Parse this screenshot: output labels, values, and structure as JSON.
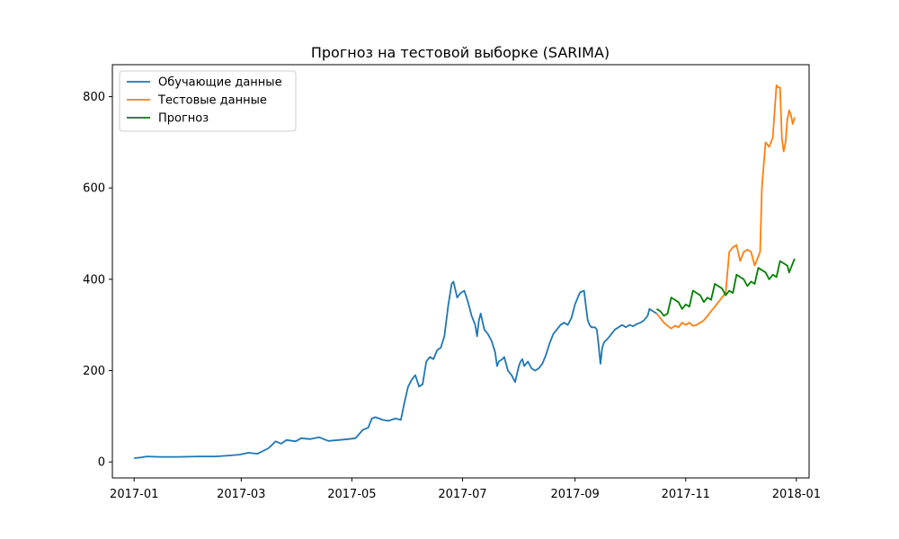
{
  "chart_data": {
    "type": "line",
    "title": "Прогноз на тестовой выборке (SARIMA)",
    "xlabel": "",
    "ylabel": "",
    "x_axis": {
      "type": "date",
      "range": [
        "2016-12-20",
        "2018-01-08"
      ],
      "ticks": [
        {
          "date": "2017-01-01",
          "label": "2017-01"
        },
        {
          "date": "2017-03-01",
          "label": "2017-03"
        },
        {
          "date": "2017-05-01",
          "label": "2017-05"
        },
        {
          "date": "2017-07-01",
          "label": "2017-07"
        },
        {
          "date": "2017-09-01",
          "label": "2017-09"
        },
        {
          "date": "2017-11-01",
          "label": "2017-11"
        },
        {
          "date": "2018-01-01",
          "label": "2018-01"
        }
      ]
    },
    "y_axis": {
      "range": [
        -35,
        870
      ],
      "ticks": [
        {
          "value": 0,
          "label": "0"
        },
        {
          "value": 200,
          "label": "200"
        },
        {
          "value": 400,
          "label": "400"
        },
        {
          "value": 600,
          "label": "600"
        },
        {
          "value": 800,
          "label": "800"
        }
      ]
    },
    "grid": false,
    "legend_position": "top-left",
    "series": [
      {
        "name": "Обучающие данные",
        "color": "#1f77b4",
        "points": [
          [
            "2017-01-01",
            8
          ],
          [
            "2017-01-05",
            10
          ],
          [
            "2017-01-08",
            12
          ],
          [
            "2017-01-15",
            11
          ],
          [
            "2017-01-25",
            11
          ],
          [
            "2017-02-05",
            12
          ],
          [
            "2017-02-15",
            12
          ],
          [
            "2017-02-22",
            14
          ],
          [
            "2017-02-28",
            16
          ],
          [
            "2017-03-05",
            20
          ],
          [
            "2017-03-10",
            18
          ],
          [
            "2017-03-16",
            30
          ],
          [
            "2017-03-20",
            45
          ],
          [
            "2017-03-23",
            40
          ],
          [
            "2017-03-26",
            48
          ],
          [
            "2017-03-31",
            45
          ],
          [
            "2017-04-03",
            52
          ],
          [
            "2017-04-08",
            50
          ],
          [
            "2017-04-13",
            54
          ],
          [
            "2017-04-18",
            46
          ],
          [
            "2017-04-24",
            48
          ],
          [
            "2017-04-29",
            50
          ],
          [
            "2017-05-03",
            52
          ],
          [
            "2017-05-07",
            70
          ],
          [
            "2017-05-10",
            75
          ],
          [
            "2017-05-12",
            95
          ],
          [
            "2017-05-14",
            98
          ],
          [
            "2017-05-18",
            92
          ],
          [
            "2017-05-21",
            90
          ],
          [
            "2017-05-25",
            95
          ],
          [
            "2017-05-28",
            92
          ],
          [
            "2017-05-30",
            130
          ],
          [
            "2017-06-01",
            165
          ],
          [
            "2017-06-03",
            180
          ],
          [
            "2017-06-05",
            190
          ],
          [
            "2017-06-07",
            165
          ],
          [
            "2017-06-09",
            170
          ],
          [
            "2017-06-11",
            220
          ],
          [
            "2017-06-13",
            230
          ],
          [
            "2017-06-15",
            225
          ],
          [
            "2017-06-17",
            245
          ],
          [
            "2017-06-19",
            250
          ],
          [
            "2017-06-21",
            275
          ],
          [
            "2017-06-23",
            340
          ],
          [
            "2017-06-25",
            390
          ],
          [
            "2017-06-26",
            395
          ],
          [
            "2017-06-28",
            360
          ],
          [
            "2017-06-30",
            370
          ],
          [
            "2017-07-02",
            375
          ],
          [
            "2017-07-04",
            350
          ],
          [
            "2017-07-06",
            320
          ],
          [
            "2017-07-08",
            300
          ],
          [
            "2017-07-09",
            275
          ],
          [
            "2017-07-10",
            310
          ],
          [
            "2017-07-11",
            325
          ],
          [
            "2017-07-13",
            290
          ],
          [
            "2017-07-15",
            280
          ],
          [
            "2017-07-17",
            265
          ],
          [
            "2017-07-19",
            240
          ],
          [
            "2017-07-20",
            210
          ],
          [
            "2017-07-21",
            220
          ],
          [
            "2017-07-23",
            225
          ],
          [
            "2017-07-24",
            230
          ],
          [
            "2017-07-26",
            200
          ],
          [
            "2017-07-28",
            190
          ],
          [
            "2017-07-30",
            175
          ],
          [
            "2017-08-01",
            210
          ],
          [
            "2017-08-02",
            220
          ],
          [
            "2017-08-03",
            225
          ],
          [
            "2017-08-04",
            210
          ],
          [
            "2017-08-06",
            220
          ],
          [
            "2017-08-08",
            205
          ],
          [
            "2017-08-10",
            200
          ],
          [
            "2017-08-12",
            205
          ],
          [
            "2017-08-14",
            215
          ],
          [
            "2017-08-16",
            235
          ],
          [
            "2017-08-18",
            260
          ],
          [
            "2017-08-20",
            280
          ],
          [
            "2017-08-22",
            290
          ],
          [
            "2017-08-24",
            300
          ],
          [
            "2017-08-26",
            305
          ],
          [
            "2017-08-28",
            300
          ],
          [
            "2017-08-30",
            315
          ],
          [
            "2017-09-01",
            345
          ],
          [
            "2017-09-03",
            365
          ],
          [
            "2017-09-04",
            372
          ],
          [
            "2017-09-06",
            375
          ],
          [
            "2017-09-07",
            340
          ],
          [
            "2017-09-08",
            310
          ],
          [
            "2017-09-09",
            300
          ],
          [
            "2017-09-10",
            295
          ],
          [
            "2017-09-12",
            295
          ],
          [
            "2017-09-13",
            290
          ],
          [
            "2017-09-14",
            255
          ],
          [
            "2017-09-15",
            215
          ],
          [
            "2017-09-16",
            250
          ],
          [
            "2017-09-17",
            262
          ],
          [
            "2017-09-19",
            270
          ],
          [
            "2017-09-21",
            280
          ],
          [
            "2017-09-23",
            290
          ],
          [
            "2017-09-25",
            295
          ],
          [
            "2017-09-27",
            300
          ],
          [
            "2017-09-29",
            295
          ],
          [
            "2017-10-01",
            300
          ],
          [
            "2017-10-03",
            297
          ],
          [
            "2017-10-05",
            302
          ],
          [
            "2017-10-07",
            305
          ],
          [
            "2017-10-09",
            310
          ],
          [
            "2017-10-11",
            320
          ],
          [
            "2017-10-12",
            335
          ],
          [
            "2017-10-14",
            330
          ],
          [
            "2017-10-16",
            325
          ]
        ]
      },
      {
        "name": "Тестовые данные",
        "color": "#ff7f0e",
        "points": [
          [
            "2017-10-16",
            325
          ],
          [
            "2017-10-18",
            315
          ],
          [
            "2017-10-20",
            305
          ],
          [
            "2017-10-22",
            298
          ],
          [
            "2017-10-24",
            292
          ],
          [
            "2017-10-26",
            298
          ],
          [
            "2017-10-28",
            295
          ],
          [
            "2017-10-30",
            305
          ],
          [
            "2017-11-01",
            300
          ],
          [
            "2017-11-03",
            305
          ],
          [
            "2017-11-05",
            298
          ],
          [
            "2017-11-07",
            300
          ],
          [
            "2017-11-09",
            305
          ],
          [
            "2017-11-11",
            310
          ],
          [
            "2017-11-13",
            320
          ],
          [
            "2017-11-15",
            330
          ],
          [
            "2017-11-17",
            340
          ],
          [
            "2017-11-19",
            350
          ],
          [
            "2017-11-21",
            360
          ],
          [
            "2017-11-23",
            370
          ],
          [
            "2017-11-25",
            460
          ],
          [
            "2017-11-27",
            470
          ],
          [
            "2017-11-29",
            475
          ],
          [
            "2017-12-01",
            440
          ],
          [
            "2017-12-03",
            460
          ],
          [
            "2017-12-05",
            465
          ],
          [
            "2017-12-07",
            460
          ],
          [
            "2017-12-09",
            430
          ],
          [
            "2017-12-11",
            450
          ],
          [
            "2017-12-12",
            460
          ],
          [
            "2017-12-13",
            600
          ],
          [
            "2017-12-14",
            650
          ],
          [
            "2017-12-15",
            700
          ],
          [
            "2017-12-17",
            690
          ],
          [
            "2017-12-19",
            710
          ],
          [
            "2017-12-20",
            770
          ],
          [
            "2017-12-21",
            825
          ],
          [
            "2017-12-22",
            820
          ],
          [
            "2017-12-23",
            820
          ],
          [
            "2017-12-24",
            710
          ],
          [
            "2017-12-25",
            680
          ],
          [
            "2017-12-26",
            700
          ],
          [
            "2017-12-27",
            750
          ],
          [
            "2017-12-28",
            770
          ],
          [
            "2017-12-29",
            760
          ],
          [
            "2017-12-30",
            740
          ],
          [
            "2017-12-31",
            755
          ]
        ]
      },
      {
        "name": "Прогноз",
        "color": "#008000",
        "points": [
          [
            "2017-10-16",
            335
          ],
          [
            "2017-10-18",
            330
          ],
          [
            "2017-10-20",
            320
          ],
          [
            "2017-10-22",
            325
          ],
          [
            "2017-10-24",
            360
          ],
          [
            "2017-10-26",
            355
          ],
          [
            "2017-10-28",
            350
          ],
          [
            "2017-10-30",
            335
          ],
          [
            "2017-11-01",
            345
          ],
          [
            "2017-11-03",
            340
          ],
          [
            "2017-11-05",
            375
          ],
          [
            "2017-11-07",
            370
          ],
          [
            "2017-11-09",
            365
          ],
          [
            "2017-11-11",
            350
          ],
          [
            "2017-11-13",
            360
          ],
          [
            "2017-11-15",
            355
          ],
          [
            "2017-11-17",
            390
          ],
          [
            "2017-11-19",
            385
          ],
          [
            "2017-11-21",
            380
          ],
          [
            "2017-11-23",
            365
          ],
          [
            "2017-11-25",
            375
          ],
          [
            "2017-11-27",
            370
          ],
          [
            "2017-11-29",
            410
          ],
          [
            "2017-12-01",
            405
          ],
          [
            "2017-12-03",
            400
          ],
          [
            "2017-12-05",
            385
          ],
          [
            "2017-12-07",
            395
          ],
          [
            "2017-12-09",
            390
          ],
          [
            "2017-12-11",
            425
          ],
          [
            "2017-12-13",
            420
          ],
          [
            "2017-12-15",
            415
          ],
          [
            "2017-12-17",
            400
          ],
          [
            "2017-12-19",
            410
          ],
          [
            "2017-12-21",
            405
          ],
          [
            "2017-12-23",
            440
          ],
          [
            "2017-12-25",
            435
          ],
          [
            "2017-12-27",
            430
          ],
          [
            "2017-12-28",
            415
          ],
          [
            "2017-12-29",
            425
          ],
          [
            "2017-12-31",
            445
          ]
        ]
      }
    ]
  }
}
